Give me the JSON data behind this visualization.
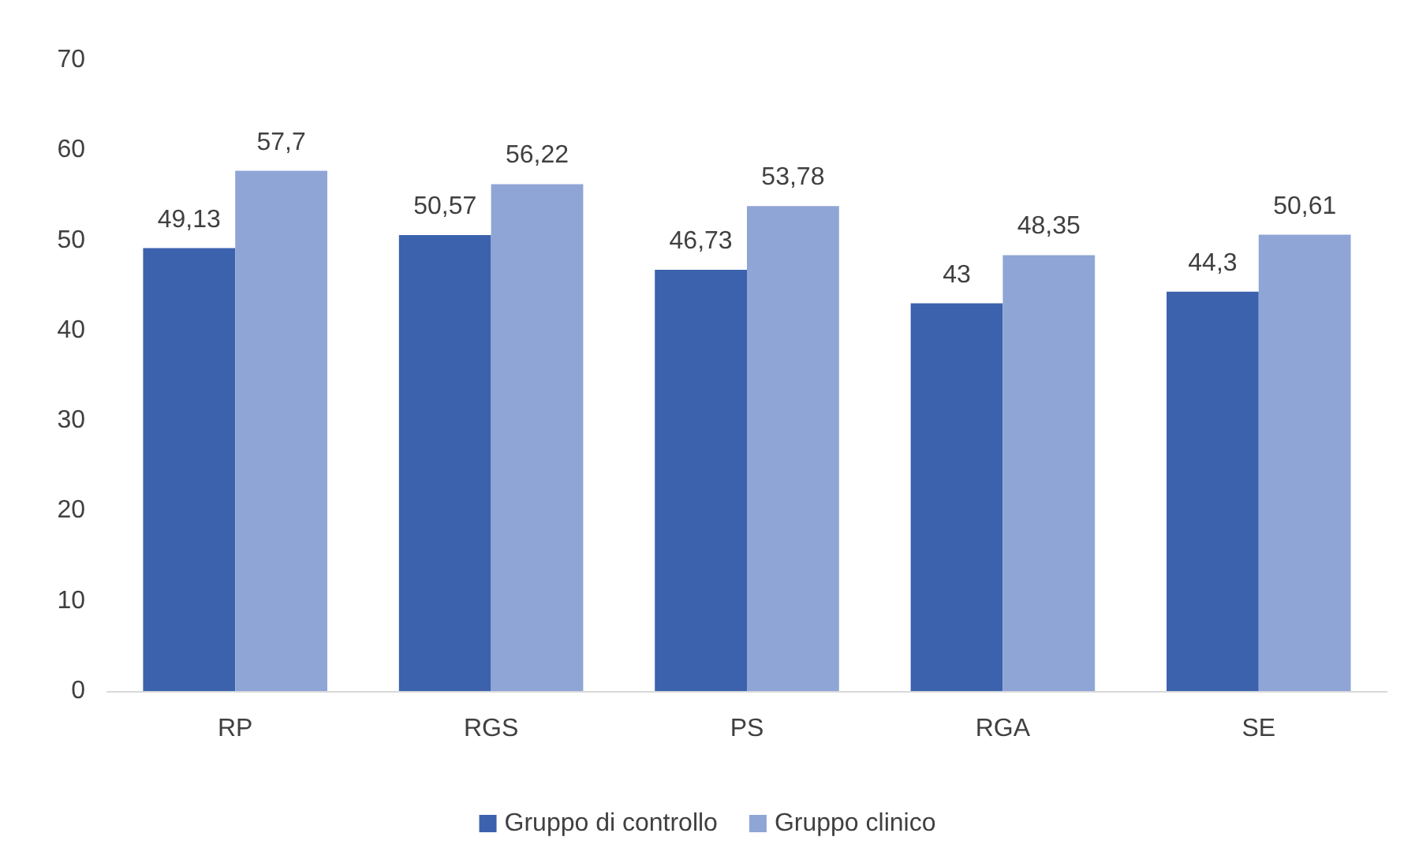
{
  "chart_data": {
    "type": "bar",
    "categories": [
      "RP",
      "RGS",
      "PS",
      "RGA",
      "SE"
    ],
    "series": [
      {
        "name": "Gruppo di controllo",
        "color": "#3c62ad",
        "values": [
          49.13,
          50.57,
          46.73,
          43,
          44.3
        ],
        "value_labels": [
          "49,13",
          "50,57",
          "46,73",
          "43",
          "44,3"
        ]
      },
      {
        "name": "Gruppo clinico",
        "color": "#8fa5d6",
        "values": [
          57.7,
          56.22,
          53.78,
          48.35,
          50.61
        ],
        "value_labels": [
          "57,7",
          "56,22",
          "53,78",
          "48,35",
          "50,61"
        ]
      }
    ],
    "ylim": [
      0,
      70
    ],
    "yticks": [
      0,
      10,
      20,
      30,
      40,
      50,
      60,
      70
    ],
    "grid": false,
    "legend": "bottom"
  }
}
